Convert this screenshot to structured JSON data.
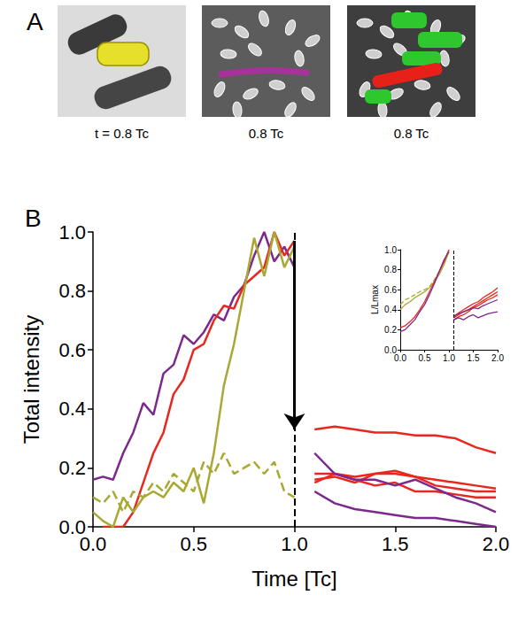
{
  "panel_a": {
    "letter": "A",
    "captions": [
      "t = 0.8 Tc",
      "0.8 Tc",
      "0.8 Tc"
    ]
  },
  "chart_data": [
    {
      "letter": "B",
      "type": "line",
      "xlabel": "Time [Tc]",
      "ylabel": "Total intensity",
      "xlim": [
        0,
        2
      ],
      "ylim": [
        0,
        1
      ],
      "xticks": [
        {
          "value": 0,
          "label": "0.0"
        },
        0.5,
        {
          "value": 1,
          "label": "1.0"
        },
        1.5,
        {
          "value": 2,
          "label": "2.0"
        }
      ],
      "yticks": [
        {
          "value": 0,
          "label": "0.0"
        },
        0.2,
        0.4,
        0.6,
        0.8,
        {
          "value": 1,
          "label": "1.0"
        }
      ],
      "grid": false,
      "division": {
        "x": 1.0,
        "arrow_from": 0.97,
        "arrow_to": 0.33
      },
      "series": [
        {
          "color": "#7b2a8c",
          "line_style": "solid",
          "marker": "none",
          "x": [
            0,
            0.05,
            0.1,
            0.15,
            0.2,
            0.25,
            0.3,
            0.35,
            0.4,
            0.45,
            0.5,
            0.55,
            0.6,
            0.65,
            0.7,
            0.75,
            0.8,
            0.85,
            0.9,
            0.95,
            1.0
          ],
          "values": [
            0.16,
            0.17,
            0.16,
            0.25,
            0.32,
            0.42,
            0.38,
            0.52,
            0.55,
            0.65,
            0.62,
            0.66,
            0.72,
            0.7,
            0.78,
            0.82,
            0.92,
            1.0,
            0.9,
            0.95,
            0.88
          ]
        },
        {
          "color": "#e8281e",
          "line_style": "solid",
          "marker": "none",
          "x": [
            0.05,
            0.1,
            0.15,
            0.2,
            0.25,
            0.3,
            0.35,
            0.4,
            0.45,
            0.5,
            0.55,
            0.6,
            0.65,
            0.7,
            0.75,
            0.8,
            0.85,
            0.9,
            0.95,
            1.0
          ],
          "values": [
            0.0,
            0.0,
            0.0,
            0.05,
            0.15,
            0.25,
            0.32,
            0.45,
            0.5,
            0.6,
            0.62,
            0.7,
            0.75,
            0.74,
            0.82,
            0.85,
            0.88,
            1.0,
            0.92,
            0.97
          ]
        },
        {
          "color": "#a9a832",
          "line_style": "solid",
          "marker": "none",
          "x": [
            0,
            0.05,
            0.1,
            0.15,
            0.2,
            0.25,
            0.3,
            0.35,
            0.4,
            0.45,
            0.5,
            0.55,
            0.6,
            0.65,
            0.7,
            0.75,
            0.8,
            0.85,
            0.9,
            0.95,
            1.0
          ],
          "values": [
            0.05,
            0.02,
            0.0,
            0.1,
            0.05,
            0.1,
            0.12,
            0.1,
            0.15,
            0.12,
            0.2,
            0.08,
            0.25,
            0.48,
            0.62,
            0.8,
            0.98,
            0.85,
            1.0,
            0.88,
            0.95
          ]
        },
        {
          "color": "#a9a832",
          "line_style": "dashed",
          "marker": "none",
          "x": [
            0,
            0.05,
            0.1,
            0.15,
            0.2,
            0.25,
            0.3,
            0.35,
            0.4,
            0.45,
            0.5,
            0.55,
            0.6,
            0.65,
            0.7,
            0.75,
            0.8,
            0.85,
            0.9,
            0.95,
            1.0
          ],
          "values": [
            0.1,
            0.08,
            0.12,
            0.05,
            0.12,
            0.1,
            0.15,
            0.12,
            0.18,
            0.15,
            0.12,
            0.22,
            0.18,
            0.25,
            0.18,
            0.2,
            0.22,
            0.18,
            0.22,
            0.12,
            0.1
          ]
        },
        {
          "color": "#e8281e",
          "line_style": "solid",
          "marker": "none",
          "x": [
            1.1,
            1.2,
            1.3,
            1.4,
            1.5,
            1.6,
            1.7,
            1.8,
            1.9,
            2.0
          ],
          "values": [
            0.33,
            0.34,
            0.33,
            0.32,
            0.32,
            0.31,
            0.31,
            0.3,
            0.27,
            0.25
          ]
        },
        {
          "color": "#e8281e",
          "line_style": "solid",
          "marker": "none",
          "x": [
            1.1,
            1.2,
            1.3,
            1.4,
            1.5,
            1.6,
            1.7,
            1.8,
            1.9,
            2.0
          ],
          "values": [
            0.18,
            0.18,
            0.17,
            0.18,
            0.18,
            0.17,
            0.16,
            0.15,
            0.14,
            0.13
          ]
        },
        {
          "color": "#e8281e",
          "line_style": "solid",
          "marker": "none",
          "x": [
            1.1,
            1.2,
            1.3,
            1.4,
            1.5,
            1.6,
            1.7,
            1.8,
            1.9,
            2.0
          ],
          "values": [
            0.16,
            0.17,
            0.15,
            0.18,
            0.19,
            0.17,
            0.14,
            0.13,
            0.12,
            0.12
          ]
        },
        {
          "color": "#e8281e",
          "line_style": "solid",
          "marker": "none",
          "x": [
            1.1,
            1.2,
            1.3,
            1.4,
            1.5,
            1.6,
            1.7,
            1.8,
            1.9,
            2.0
          ],
          "values": [
            0.15,
            0.18,
            0.16,
            0.14,
            0.15,
            0.12,
            0.12,
            0.11,
            0.1,
            0.1
          ]
        },
        {
          "color": "#7b2a8c",
          "line_style": "solid",
          "marker": "none",
          "x": [
            1.1,
            1.2,
            1.3,
            1.4,
            1.5,
            1.6,
            1.7,
            1.8,
            1.9,
            2.0
          ],
          "values": [
            0.25,
            0.18,
            0.16,
            0.16,
            0.14,
            0.16,
            0.13,
            0.1,
            0.08,
            0.05
          ]
        },
        {
          "color": "#7b2a8c",
          "line_style": "solid",
          "marker": "none",
          "x": [
            1.1,
            1.2,
            1.3,
            1.4,
            1.5,
            1.6,
            1.7,
            1.8,
            1.9,
            2.0
          ],
          "values": [
            0.12,
            0.08,
            0.06,
            0.05,
            0.04,
            0.03,
            0.03,
            0.02,
            0.01,
            0.0
          ]
        }
      ]
    },
    {
      "type": "line",
      "ylabel": "L/Lmax",
      "xlim": [
        0,
        2
      ],
      "ylim": [
        0,
        1
      ],
      "xticks": [
        {
          "value": 0,
          "label": "0.0"
        },
        0.5,
        {
          "value": 1,
          "label": "1.0"
        },
        1.5,
        {
          "value": 2,
          "label": "2.0"
        }
      ],
      "yticks": [
        {
          "value": 0,
          "label": "0.0"
        },
        0.2,
        0.4,
        0.6,
        0.8,
        {
          "value": 1,
          "label": "1.0"
        }
      ],
      "grid": false,
      "division": {
        "x": 1.1
      },
      "series": [
        {
          "color": "#a9a832",
          "line_style": "solid",
          "marker": "none",
          "x": [
            0,
            0.1,
            0.2,
            0.3,
            0.4,
            0.5,
            0.6,
            0.7,
            0.8,
            0.9,
            1.0
          ],
          "values": [
            0.4,
            0.45,
            0.48,
            0.52,
            0.55,
            0.58,
            0.62,
            0.68,
            0.75,
            0.85,
            0.98
          ]
        },
        {
          "color": "#a9a832",
          "line_style": "dashed",
          "marker": "none",
          "x": [
            0,
            0.1,
            0.2,
            0.3,
            0.4,
            0.5,
            0.6,
            0.7,
            0.8,
            0.9,
            1.0
          ],
          "values": [
            0.45,
            0.5,
            0.52,
            0.55,
            0.58,
            0.6,
            0.63,
            0.7,
            0.78,
            0.88,
            1.0
          ]
        },
        {
          "color": "#e8281e",
          "line_style": "solid",
          "marker": "none",
          "x": [
            0,
            0.1,
            0.2,
            0.3,
            0.4,
            0.5,
            0.6,
            0.7,
            0.8,
            0.9,
            1.0
          ],
          "values": [
            0.22,
            0.24,
            0.28,
            0.33,
            0.4,
            0.48,
            0.58,
            0.68,
            0.78,
            0.88,
            1.0
          ]
        },
        {
          "color": "#7b2a8c",
          "line_style": "solid",
          "marker": "none",
          "x": [
            0,
            0.1,
            0.2,
            0.3,
            0.4,
            0.5,
            0.6,
            0.7,
            0.8,
            0.9,
            1.0
          ],
          "values": [
            0.18,
            0.2,
            0.25,
            0.3,
            0.38,
            0.45,
            0.55,
            0.66,
            0.78,
            0.9,
            0.98
          ]
        },
        {
          "color": "#e8281e",
          "line_style": "solid",
          "marker": "none",
          "x": [
            1.1,
            1.2,
            1.3,
            1.4,
            1.5,
            1.6,
            1.7,
            1.8,
            1.9,
            2.0
          ],
          "values": [
            0.33,
            0.37,
            0.4,
            0.43,
            0.46,
            0.48,
            0.52,
            0.55,
            0.58,
            0.62
          ]
        },
        {
          "color": "#e8281e",
          "line_style": "solid",
          "marker": "none",
          "x": [
            1.1,
            1.2,
            1.3,
            1.4,
            1.5,
            1.6,
            1.7,
            1.8,
            1.9,
            2.0
          ],
          "values": [
            0.32,
            0.35,
            0.38,
            0.4,
            0.43,
            0.46,
            0.49,
            0.52,
            0.55,
            0.58
          ]
        },
        {
          "color": "#e8281e",
          "line_style": "solid",
          "marker": "none",
          "x": [
            1.1,
            1.2,
            1.3,
            1.4,
            1.5,
            1.6,
            1.7,
            1.8,
            1.9,
            2.0
          ],
          "values": [
            0.3,
            0.33,
            0.35,
            0.38,
            0.42,
            0.44,
            0.47,
            0.5,
            0.52,
            0.55
          ]
        },
        {
          "color": "#7b2a8c",
          "line_style": "solid",
          "marker": "none",
          "x": [
            1.1,
            1.2,
            1.3,
            1.4,
            1.5,
            1.6,
            1.7,
            1.8,
            1.9,
            2.0
          ],
          "values": [
            0.34,
            0.36,
            0.38,
            0.4,
            0.42,
            0.41,
            0.44,
            0.46,
            0.48,
            0.5
          ]
        },
        {
          "color": "#7b2a8c",
          "line_style": "solid",
          "marker": "none",
          "x": [
            1.1,
            1.2,
            1.3,
            1.4,
            1.5,
            1.6,
            1.7,
            1.8,
            1.9,
            2.0
          ],
          "values": [
            0.3,
            0.32,
            0.3,
            0.33,
            0.35,
            0.32,
            0.34,
            0.36,
            0.37,
            0.38
          ]
        }
      ]
    }
  ]
}
